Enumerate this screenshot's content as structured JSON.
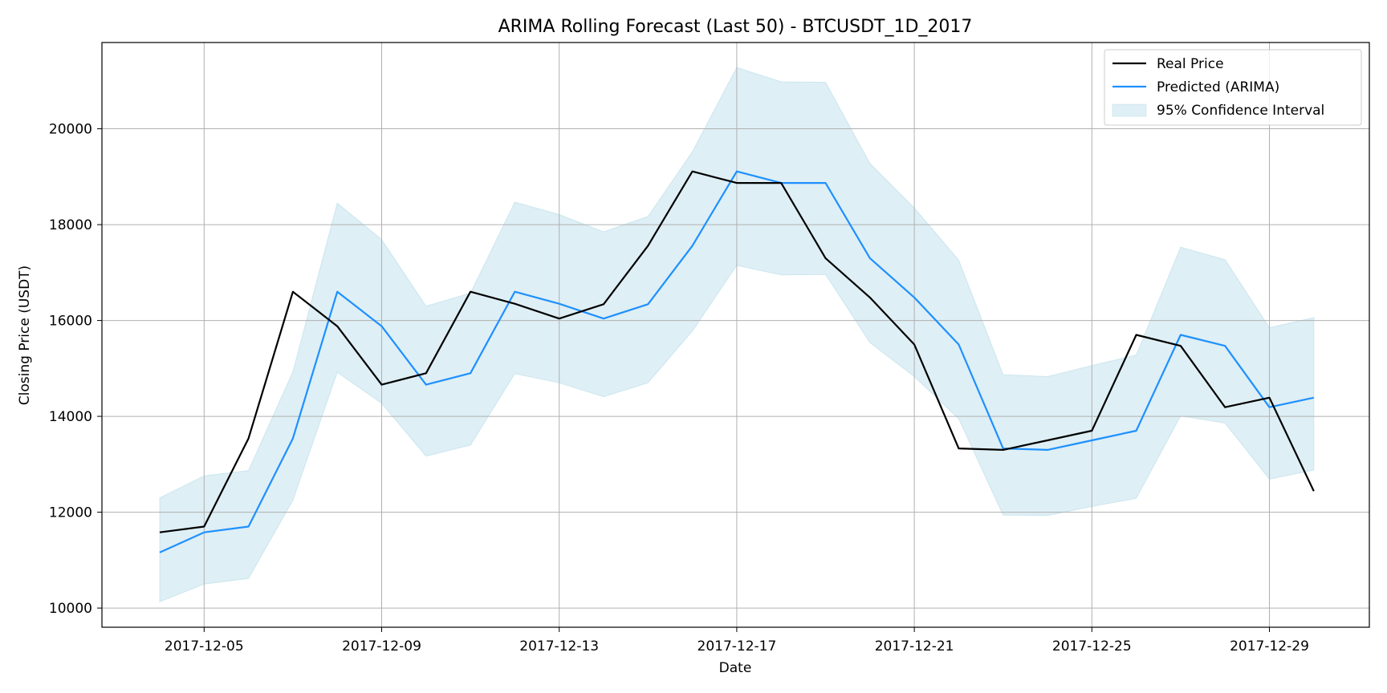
{
  "chart_data": {
    "type": "line",
    "title": "ARIMA Rolling Forecast (Last 50) - BTCUSDT_1D_2017",
    "xlabel": "Date",
    "ylabel": "Closing Price (USDT)",
    "x": [
      "2017-12-04",
      "2017-12-05",
      "2017-12-06",
      "2017-12-07",
      "2017-12-08",
      "2017-12-09",
      "2017-12-10",
      "2017-12-11",
      "2017-12-12",
      "2017-12-13",
      "2017-12-14",
      "2017-12-15",
      "2017-12-16",
      "2017-12-17",
      "2017-12-18",
      "2017-12-19",
      "2017-12-20",
      "2017-12-21",
      "2017-12-22",
      "2017-12-23",
      "2017-12-24",
      "2017-12-25",
      "2017-12-26",
      "2017-12-27",
      "2017-12-28",
      "2017-12-29",
      "2017-12-30"
    ],
    "xticks": [
      "2017-12-05",
      "2017-12-09",
      "2017-12-13",
      "2017-12-17",
      "2017-12-21",
      "2017-12-25",
      "2017-12-29"
    ],
    "ylim": [
      9600,
      21800
    ],
    "yticks": [
      10000,
      12000,
      14000,
      16000,
      18000,
      20000
    ],
    "grid": true,
    "legend_position": "top-right",
    "series": [
      {
        "name": "Real Price",
        "color": "#000000",
        "values": [
          11580,
          11700,
          13540,
          16600,
          15880,
          14660,
          14900,
          16600,
          16350,
          16040,
          16340,
          17560,
          19110,
          18870,
          18870,
          17300,
          16480,
          15500,
          13330,
          13300,
          13500,
          13700,
          15700,
          15470,
          14190,
          14390,
          12440
        ]
      },
      {
        "name": "Predicted (ARIMA)",
        "color": "#1e90ff",
        "values": [
          11160,
          11580,
          11700,
          13540,
          16600,
          15880,
          14660,
          14900,
          16600,
          16350,
          16040,
          16340,
          17560,
          19110,
          18870,
          18870,
          17300,
          16480,
          15500,
          13330,
          13300,
          13500,
          13700,
          15700,
          15470,
          14190,
          14390
        ]
      }
    ],
    "band": {
      "name": "95% Confidence Interval",
      "color": "#add8e6",
      "lower": [
        10130,
        10500,
        10620,
        12250,
        14920,
        14270,
        13170,
        13400,
        14890,
        14700,
        14410,
        14700,
        15780,
        17150,
        16950,
        16960,
        15540,
        14830,
        13950,
        11940,
        11930,
        12120,
        12290,
        14010,
        13860,
        12690,
        12880
      ],
      "upper": [
        12300,
        12760,
        12870,
        14930,
        18450,
        17690,
        16300,
        16570,
        18470,
        18210,
        17850,
        18170,
        19520,
        21280,
        20980,
        20970,
        19280,
        18350,
        17260,
        14870,
        14830,
        15060,
        15280,
        17530,
        17270,
        15850,
        16060
      ]
    }
  }
}
